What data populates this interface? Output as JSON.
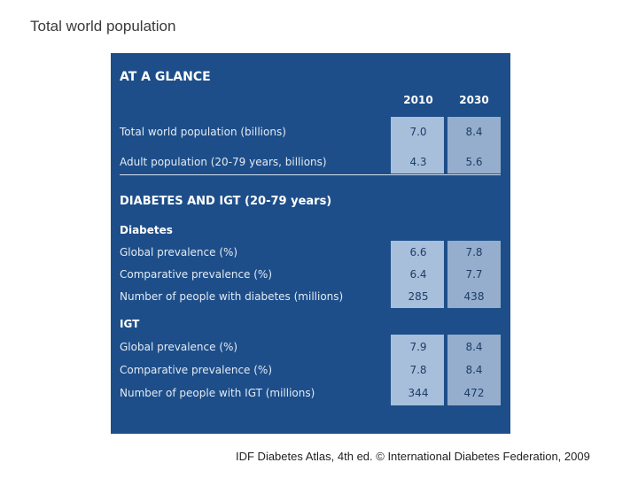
{
  "title": "Total world population",
  "table": {
    "heading": "AT A GLANCE",
    "columns": [
      "2010",
      "2030"
    ],
    "sections": [
      {
        "rows": [
          {
            "label": "Total world population (billions)",
            "v2010": "7.0",
            "v2030": "8.4"
          },
          {
            "label": "Adult population (20-79 years, billions)",
            "v2010": "4.3",
            "v2030": "5.6"
          }
        ]
      },
      {
        "heading": "DIABETES AND IGT (20-79 years)",
        "subheading": "Diabetes",
        "rows": [
          {
            "label": "Global prevalence (%)",
            "v2010": "6.6",
            "v2030": "7.8"
          },
          {
            "label": "Comparative prevalence (%)",
            "v2010": "6.4",
            "v2030": "7.7"
          },
          {
            "label": "Number of people with diabetes (millions)",
            "v2010": "285",
            "v2030": "438"
          }
        ]
      },
      {
        "subheading": "IGT",
        "rows": [
          {
            "label": "Global prevalence (%)",
            "v2010": "7.9",
            "v2030": "8.4"
          },
          {
            "label": "Comparative prevalence (%)",
            "v2010": "7.8",
            "v2030": "8.4"
          },
          {
            "label": "Number of people with IGT (millions)",
            "v2010": "344",
            "v2030": "472"
          }
        ]
      }
    ]
  },
  "footer": "IDF Diabetes Atlas, 4th ed. © International Diabetes Federation, 2009"
}
